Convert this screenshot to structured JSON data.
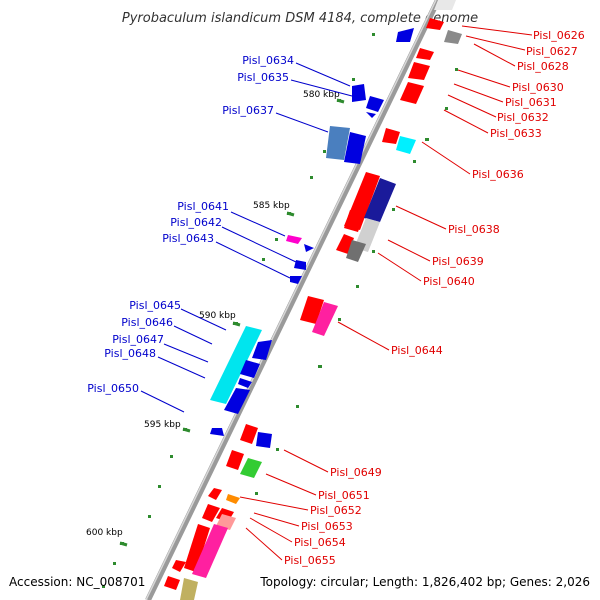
{
  "map": {
    "title": "Pyrobaculum islandicum DSM 4184, complete genome",
    "accession": "Accession: NC_008701",
    "topology": "Topology: circular; Length: 1,826,402 bp; Genes: 2,026",
    "ticks": [
      "580 kbp",
      "585 kbp",
      "590 kbp",
      "595 kbp",
      "600 kbp"
    ],
    "reverse_labels": [
      "Pisl_0634",
      "Pisl_0635",
      "Pisl_0637",
      "Pisl_0641",
      "Pisl_0642",
      "Pisl_0643",
      "Pisl_0645",
      "Pisl_0646",
      "Pisl_0647",
      "Pisl_0648",
      "Pisl_0650"
    ],
    "forward_labels": [
      "Pisl_0626",
      "Pisl_0627",
      "Pisl_0628",
      "Pisl_0630",
      "Pisl_0631",
      "Pisl_0632",
      "Pisl_0633",
      "Pisl_0636",
      "Pisl_0638",
      "Pisl_0639",
      "Pisl_0640",
      "Pisl_0644",
      "Pisl_0649",
      "Pisl_0651",
      "Pisl_0652",
      "Pisl_0653",
      "Pisl_0654",
      "Pisl_0655"
    ]
  },
  "colors": {
    "forward_label": "#e00000",
    "reverse_label": "#0000cc",
    "gene_forward": "#ff0000",
    "gene_reverse": "#0000ff",
    "backbone": "#888888"
  }
}
